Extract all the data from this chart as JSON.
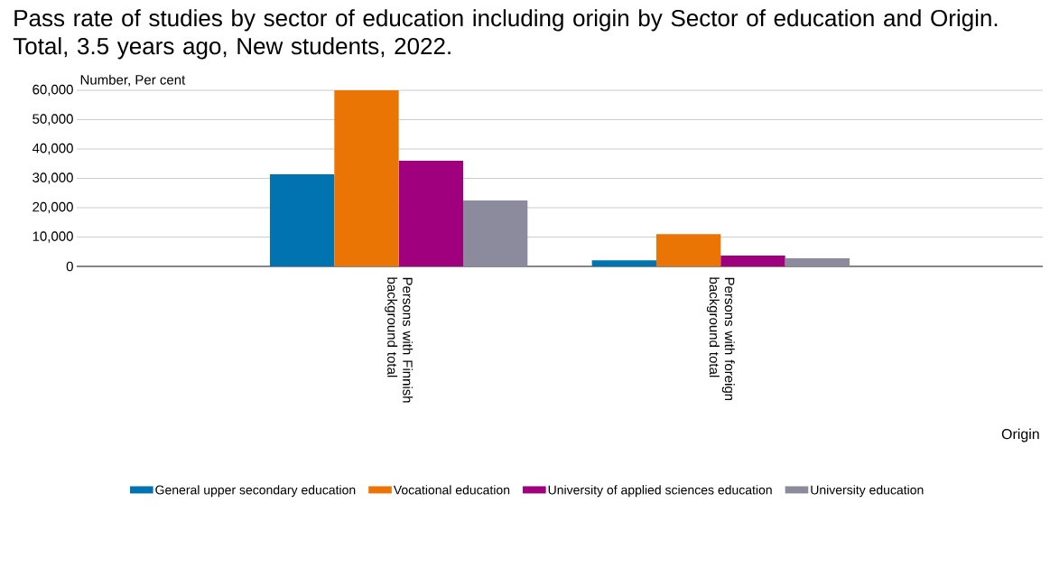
{
  "chart_data": {
    "type": "bar",
    "title": "Pass rate of studies by sector of education including origin by Sector of education and Origin. Total, 3.5 years ago, New students, 2022.",
    "ylabel": "Number, Per cent",
    "xlabel": "Origin",
    "categories": [
      "Persons with Finnish background total",
      "Persons with foreign background total"
    ],
    "series": [
      {
        "name": "General upper secondary education",
        "color": "#0073b0",
        "values": [
          31400,
          2100
        ]
      },
      {
        "name": "Vocational education",
        "color": "#ea7404",
        "values": [
          60000,
          11000
        ]
      },
      {
        "name": "University of applied sciences education",
        "color": "#a0007e",
        "values": [
          36000,
          3700
        ]
      },
      {
        "name": "University education",
        "color": "#8b8b9d",
        "values": [
          22500,
          2800
        ]
      }
    ],
    "ylim": [
      0,
      60000
    ],
    "yticks": [
      0,
      {
        "value": 10000,
        "label": "10,000"
      },
      {
        "value": 20000,
        "label": "20,000"
      },
      {
        "value": 30000,
        "label": "30,000"
      },
      {
        "value": 40000,
        "label": "40,000"
      },
      {
        "value": 50000,
        "label": "50,000"
      },
      {
        "value": 60000,
        "label": "60,000"
      }
    ],
    "grid": "y",
    "legend": "bottom"
  }
}
